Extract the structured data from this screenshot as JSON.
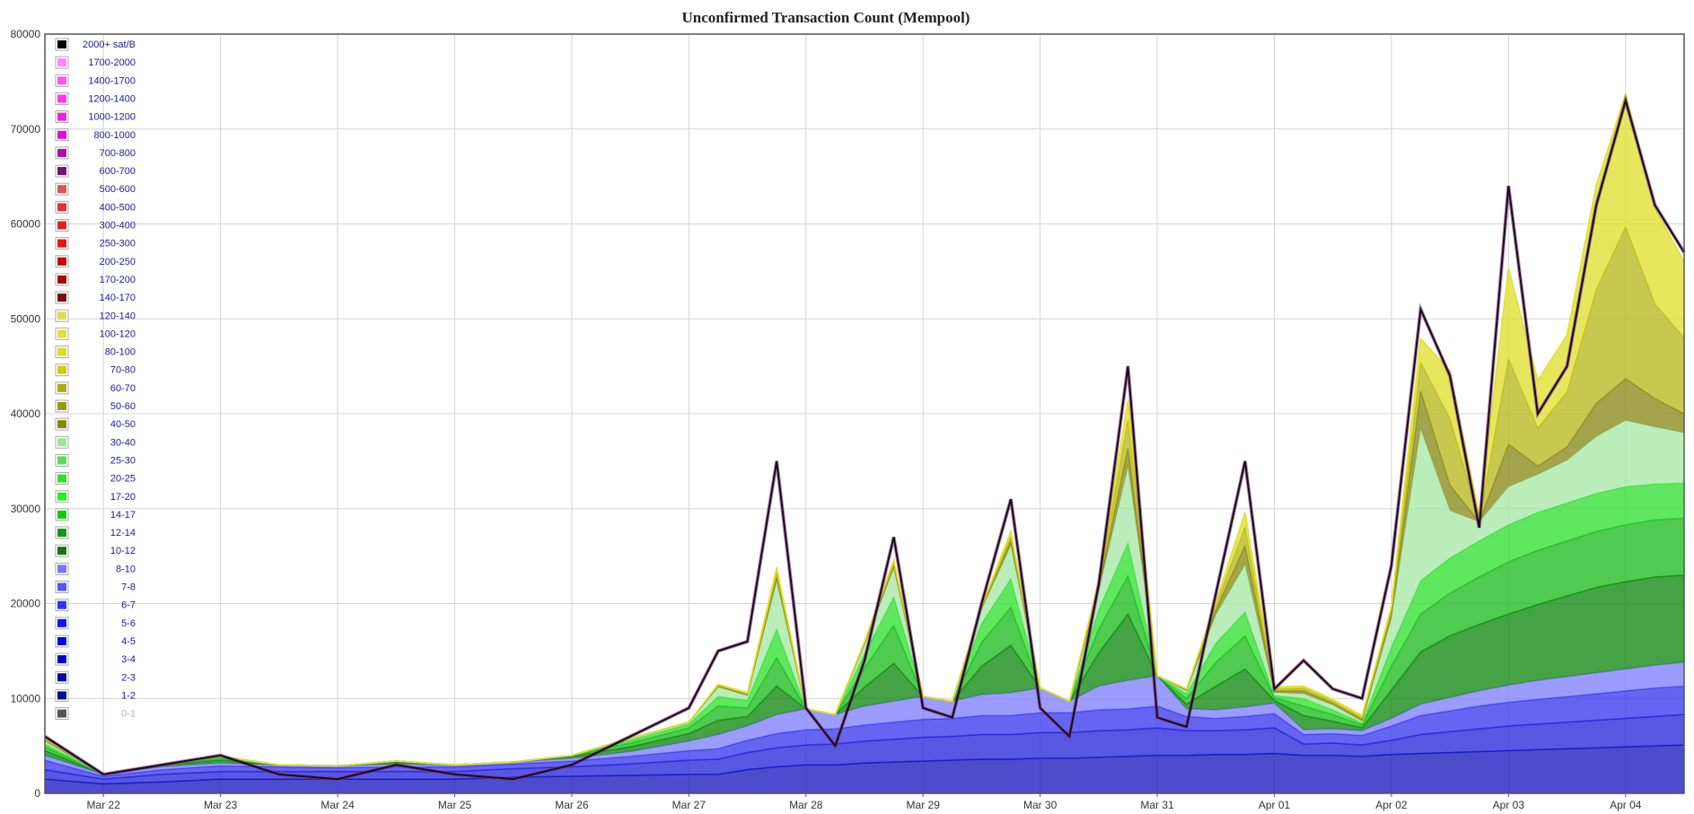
{
  "chart_data": {
    "type": "area",
    "title": "Unconfirmed Transaction Count (Mempool)",
    "xlabel": "",
    "ylabel": "",
    "stacked": true,
    "grid": true,
    "legend_position": "top-left",
    "ylim": [
      0,
      80000
    ],
    "xlim": [
      -0.5,
      13.5
    ],
    "yticks": [
      0,
      10000,
      20000,
      30000,
      40000,
      50000,
      60000,
      70000,
      80000
    ],
    "xtick_positions": [
      0,
      1,
      2,
      3,
      4,
      5,
      6,
      7,
      8,
      9,
      10,
      11,
      12,
      13
    ],
    "xtick_labels": [
      "Mar 22",
      "Mar 23",
      "Mar 24",
      "Mar 25",
      "Mar 26",
      "Mar 27",
      "Mar 28",
      "Mar 29",
      "Mar 30",
      "Mar 31",
      "Apr 01",
      "Apr 02",
      "Apr 03",
      "Apr 04"
    ],
    "x": [
      -0.5,
      0.0,
      0.5,
      1.0,
      1.5,
      2.0,
      2.5,
      3.0,
      3.5,
      4.0,
      4.5,
      5.0,
      5.25,
      5.5,
      5.75,
      6.0,
      6.25,
      6.5,
      6.75,
      7.0,
      7.25,
      7.5,
      7.75,
      8.0,
      8.25,
      8.5,
      8.75,
      9.0,
      9.25,
      9.5,
      9.75,
      10.0,
      10.25,
      10.5,
      10.75,
      11.0,
      11.25,
      11.5,
      11.75,
      12.0,
      12.25,
      12.5,
      12.75,
      13.0,
      13.25,
      13.5
    ],
    "total_series_name": "2000+ sat/B",
    "total": [
      6000,
      2000,
      3000,
      4000,
      2000,
      1500,
      3000,
      2000,
      1500,
      3000,
      6000,
      9000,
      15000,
      16000,
      35000,
      9000,
      5000,
      14000,
      27000,
      9000,
      8000,
      20000,
      31000,
      9000,
      6000,
      22000,
      45000,
      8000,
      7000,
      21000,
      35000,
      11000,
      14000,
      11000,
      10000,
      24000,
      51000,
      44000,
      28000,
      64000,
      40000,
      45000,
      62000,
      73000,
      62000,
      57000
    ],
    "series": [
      {
        "name": "1-2",
        "color": "#1a1abf",
        "values": [
          1500,
          1000,
          1200,
          1500,
          1500,
          1500,
          1500,
          1500,
          1700,
          1800,
          1900,
          2000,
          2000,
          2500,
          2800,
          3000,
          3000,
          3200,
          3300,
          3400,
          3500,
          3600,
          3600,
          3700,
          3700,
          3800,
          3900,
          4000,
          4000,
          4100,
          4100,
          4200,
          4000,
          4000,
          3900,
          4100,
          4200,
          4300,
          4400,
          4500,
          4600,
          4700,
          4800,
          4900,
          5000,
          5100
        ]
      },
      {
        "name": "3-4",
        "color": "#2828d8",
        "values": [
          1000,
          500,
          800,
          800,
          800,
          800,
          800,
          800,
          900,
          1000,
          1200,
          1500,
          1600,
          1800,
          2000,
          2100,
          2200,
          2300,
          2400,
          2500,
          2500,
          2600,
          2600,
          2700,
          2700,
          2800,
          2800,
          2900,
          2600,
          2500,
          2600,
          2700,
          1200,
          1300,
          1200,
          1500,
          2000,
          2200,
          2400,
          2600,
          2700,
          2800,
          2900,
          3000,
          3100,
          3200
        ]
      },
      {
        "name": "5-6",
        "color": "#3a3aee",
        "values": [
          1000,
          300,
          500,
          600,
          500,
          400,
          500,
          500,
          500,
          600,
          800,
          1000,
          1100,
          1300,
          1500,
          1600,
          1600,
          1700,
          1800,
          1900,
          1900,
          2000,
          2000,
          2100,
          2100,
          2200,
          2200,
          2300,
          1500,
          1300,
          1400,
          1500,
          1000,
          1000,
          1000,
          1500,
          2000,
          2200,
          2400,
          2500,
          2600,
          2700,
          2800,
          2900,
          3000,
          3000
        ]
      },
      {
        "name": "8-10",
        "color": "#8080ff",
        "values": [
          500,
          200,
          300,
          300,
          200,
          200,
          300,
          200,
          200,
          300,
          500,
          1000,
          1500,
          1500,
          2000,
          2200,
          1500,
          2000,
          2200,
          2400,
          1800,
          2200,
          2400,
          2600,
          1200,
          2500,
          3000,
          3200,
          800,
          900,
          1000,
          1100,
          500,
          500,
          500,
          800,
          1200,
          1400,
          1600,
          1800,
          2000,
          2100,
          2200,
          2300,
          2400,
          2500
        ]
      },
      {
        "name": "10-12",
        "color": "#118811",
        "values": [
          500,
          0,
          200,
          300,
          0,
          0,
          200,
          0,
          0,
          200,
          500,
          800,
          1500,
          1000,
          3000,
          0,
          0,
          2000,
          4000,
          0,
          0,
          3000,
          5000,
          0,
          0,
          3500,
          7000,
          0,
          500,
          2500,
          4000,
          300,
          1500,
          800,
          300,
          3000,
          5500,
          6500,
          7000,
          7500,
          8000,
          8500,
          9000,
          9200,
          9300,
          9200
        ]
      },
      {
        "name": "14-17",
        "color": "#20bb20",
        "values": [
          400,
          0,
          0,
          200,
          0,
          0,
          100,
          0,
          0,
          100,
          400,
          600,
          1500,
          900,
          3000,
          0,
          0,
          2000,
          4000,
          0,
          0,
          2500,
          4000,
          0,
          0,
          2500,
          4000,
          0,
          600,
          2500,
          3500,
          300,
          1000,
          700,
          300,
          2500,
          4000,
          4500,
          5000,
          5500,
          5700,
          5800,
          5900,
          6000,
          6000,
          6000
        ]
      },
      {
        "name": "20-25",
        "color": "#33e033",
        "values": [
          300,
          0,
          0,
          100,
          0,
          0,
          0,
          0,
          0,
          0,
          300,
          400,
          1000,
          800,
          3000,
          0,
          0,
          1500,
          3000,
          0,
          0,
          2000,
          3000,
          0,
          0,
          2000,
          3500,
          0,
          500,
          2000,
          2500,
          200,
          800,
          500,
          200,
          2000,
          3500,
          3700,
          3800,
          3900,
          4000,
          4000,
          4000,
          4000,
          3800,
          3700
        ]
      },
      {
        "name": "30-40",
        "color": "#a8e8a8",
        "values": [
          300,
          0,
          0,
          100,
          0,
          0,
          0,
          0,
          0,
          0,
          200,
          200,
          1000,
          500,
          5000,
          0,
          0,
          1000,
          3000,
          0,
          0,
          1500,
          3500,
          0,
          0,
          2000,
          8000,
          0,
          300,
          3000,
          5000,
          300,
          500,
          500,
          200,
          3000,
          16000,
          5000,
          2000,
          4000,
          4000,
          4500,
          6000,
          7000,
          6000,
          5300
        ]
      },
      {
        "name": "40-50",
        "color": "#8a8a1c",
        "values": [
          100,
          0,
          0,
          0,
          0,
          0,
          0,
          0,
          0,
          0,
          0,
          0,
          100,
          100,
          500,
          0,
          0,
          100,
          300,
          0,
          0,
          100,
          500,
          0,
          0,
          400,
          2000,
          0,
          100,
          500,
          2000,
          200,
          300,
          200,
          200,
          500,
          4000,
          2700,
          0,
          4500,
          900,
          1400,
          3500,
          4400,
          3000,
          2000
        ]
      },
      {
        "name": "60-70",
        "color": "#b8b820",
        "values": [
          100,
          0,
          0,
          0,
          0,
          0,
          0,
          0,
          0,
          0,
          0,
          0,
          100,
          100,
          500,
          0,
          0,
          100,
          300,
          0,
          0,
          100,
          500,
          0,
          0,
          400,
          3000,
          0,
          100,
          500,
          2000,
          200,
          300,
          200,
          200,
          500,
          3000,
          7000,
          200,
          9000,
          4000,
          5800,
          12000,
          16000,
          10000,
          8000
        ]
      },
      {
        "name": "100-120",
        "color": "#e0e030",
        "values": [
          100,
          0,
          0,
          0,
          0,
          0,
          0,
          0,
          0,
          0,
          0,
          0,
          100,
          100,
          500,
          0,
          0,
          100,
          300,
          0,
          0,
          100,
          500,
          0,
          0,
          300,
          2000,
          0,
          0,
          300,
          1500,
          200,
          200,
          200,
          200,
          300,
          2500,
          5000,
          400,
          9500,
          5000,
          6000,
          11000,
          14000,
          10000,
          8000
        ]
      }
    ],
    "legend_items": [
      {
        "label": "2000+ sat/B",
        "color": "#000000"
      },
      {
        "label": "1700-2000",
        "color": "#ff88ff"
      },
      {
        "label": "1400-1700",
        "color": "#ff55ee"
      },
      {
        "label": "1200-1400",
        "color": "#ff33ee"
      },
      {
        "label": "1000-1200",
        "color": "#ee22dd"
      },
      {
        "label": "800-1000",
        "color": "#dd11cc"
      },
      {
        "label": "700-800",
        "color": "#aa11aa"
      },
      {
        "label": "600-700",
        "color": "#771177"
      },
      {
        "label": "500-600",
        "color": "#dd5555"
      },
      {
        "label": "400-500",
        "color": "#dd3333"
      },
      {
        "label": "300-400",
        "color": "#dd2222"
      },
      {
        "label": "250-300",
        "color": "#ee1111"
      },
      {
        "label": "200-250",
        "color": "#cc0000"
      },
      {
        "label": "170-200",
        "color": "#aa0000"
      },
      {
        "label": "140-170",
        "color": "#771111"
      },
      {
        "label": "120-140",
        "color": "#dddd55"
      },
      {
        "label": "100-120",
        "color": "#e0e040"
      },
      {
        "label": "80-100",
        "color": "#dddd22"
      },
      {
        "label": "70-80",
        "color": "#cccc11"
      },
      {
        "label": "60-70",
        "color": "#aaaa11"
      },
      {
        "label": "50-60",
        "color": "#999911"
      },
      {
        "label": "40-50",
        "color": "#888811"
      },
      {
        "label": "30-40",
        "color": "#99e699"
      },
      {
        "label": "25-30",
        "color": "#55dd55"
      },
      {
        "label": "20-25",
        "color": "#33dd33"
      },
      {
        "label": "17-20",
        "color": "#22ee22"
      },
      {
        "label": "14-17",
        "color": "#11cc11"
      },
      {
        "label": "12-14",
        "color": "#119911"
      },
      {
        "label": "10-12",
        "color": "#117711"
      },
      {
        "label": "8-10",
        "color": "#7777ff"
      },
      {
        "label": "7-8",
        "color": "#5555ff"
      },
      {
        "label": "6-7",
        "color": "#3333ff"
      },
      {
        "label": "5-6",
        "color": "#1111ff"
      },
      {
        "label": "4-5",
        "color": "#0000ee"
      },
      {
        "label": "3-4",
        "color": "#0000cc"
      },
      {
        "label": "2-3",
        "color": "#0000aa"
      },
      {
        "label": "1-2",
        "color": "#001188"
      },
      {
        "label": "0-1",
        "color": "#555555",
        "faded": true
      }
    ]
  }
}
